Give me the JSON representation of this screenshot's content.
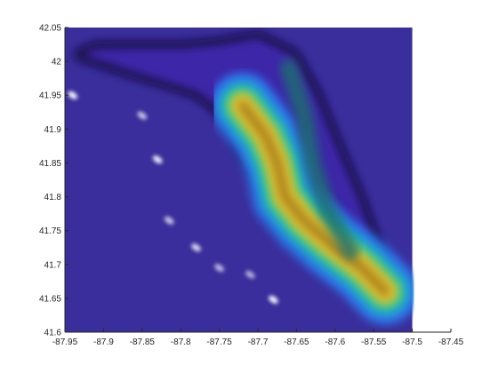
{
  "chart_data": {
    "type": "heatmap",
    "title": "",
    "xlabel": "",
    "ylabel": "",
    "xlim": [
      -87.95,
      -87.45
    ],
    "ylim": [
      41.6,
      42.05
    ],
    "data_extent": {
      "x": [
        -87.95,
        -87.5
      ],
      "y": [
        41.6,
        42.05
      ]
    },
    "xticks": [
      "-87.95",
      "-87.9",
      "-87.85",
      "-87.8",
      "-87.75",
      "-87.7",
      "-87.65",
      "-87.6",
      "-87.55",
      "-87.5",
      "-87.45"
    ],
    "yticks": [
      "41.6",
      "41.65",
      "41.7",
      "41.75",
      "41.8",
      "41.85",
      "41.9",
      "41.95",
      "42",
      "42.05"
    ],
    "grid": false,
    "colormap": [
      "#3e26a8",
      "#2e80f2",
      "#13beb7",
      "#80cb58",
      "#f3be2b",
      "#9c7a1d"
    ],
    "background_color": "#3a2e9c",
    "region_outline": [
      [
        -87.93,
        42.01
      ],
      [
        -87.85,
        41.98
      ],
      [
        -87.82,
        41.97
      ],
      [
        -87.78,
        41.955
      ],
      [
        -87.755,
        41.935
      ],
      [
        -87.735,
        41.905
      ],
      [
        -87.72,
        41.87
      ],
      [
        -87.705,
        41.84
      ],
      [
        -87.695,
        41.81
      ],
      [
        -87.685,
        41.78
      ],
      [
        -87.665,
        41.75
      ],
      [
        -87.64,
        41.725
      ],
      [
        -87.6,
        41.7
      ],
      [
        -87.56,
        41.675
      ],
      [
        -87.53,
        41.652
      ],
      [
        -87.525,
        41.66
      ],
      [
        -87.545,
        41.72
      ],
      [
        -87.57,
        41.8
      ],
      [
        -87.6,
        41.88
      ],
      [
        -87.625,
        41.95
      ],
      [
        -87.655,
        42.01
      ],
      [
        -87.7,
        42.035
      ],
      [
        -87.75,
        42.025
      ],
      [
        -87.8,
        42.02
      ],
      [
        -87.86,
        42.02
      ],
      [
        -87.91,
        42.02
      ]
    ],
    "density_ridge": [
      [
        -87.72,
        41.935
      ],
      [
        -87.69,
        41.89
      ],
      [
        -87.675,
        41.85
      ],
      [
        -87.665,
        41.8
      ],
      [
        -87.64,
        41.765
      ],
      [
        -87.605,
        41.73
      ],
      [
        -87.565,
        41.695
      ],
      [
        -87.535,
        41.66
      ]
    ],
    "hotspots": [
      {
        "x": -87.94,
        "y": 41.95,
        "intensity": 0.95
      },
      {
        "x": -87.83,
        "y": 41.855,
        "intensity": 0.9
      },
      {
        "x": -87.85,
        "y": 41.92,
        "intensity": 0.7
      },
      {
        "x": -87.815,
        "y": 41.765,
        "intensity": 0.7
      },
      {
        "x": -87.78,
        "y": 41.725,
        "intensity": 0.8
      },
      {
        "x": -87.75,
        "y": 41.695,
        "intensity": 0.65
      },
      {
        "x": -87.71,
        "y": 41.685,
        "intensity": 0.6
      },
      {
        "x": -87.68,
        "y": 41.648,
        "intensity": 0.95
      }
    ]
  }
}
